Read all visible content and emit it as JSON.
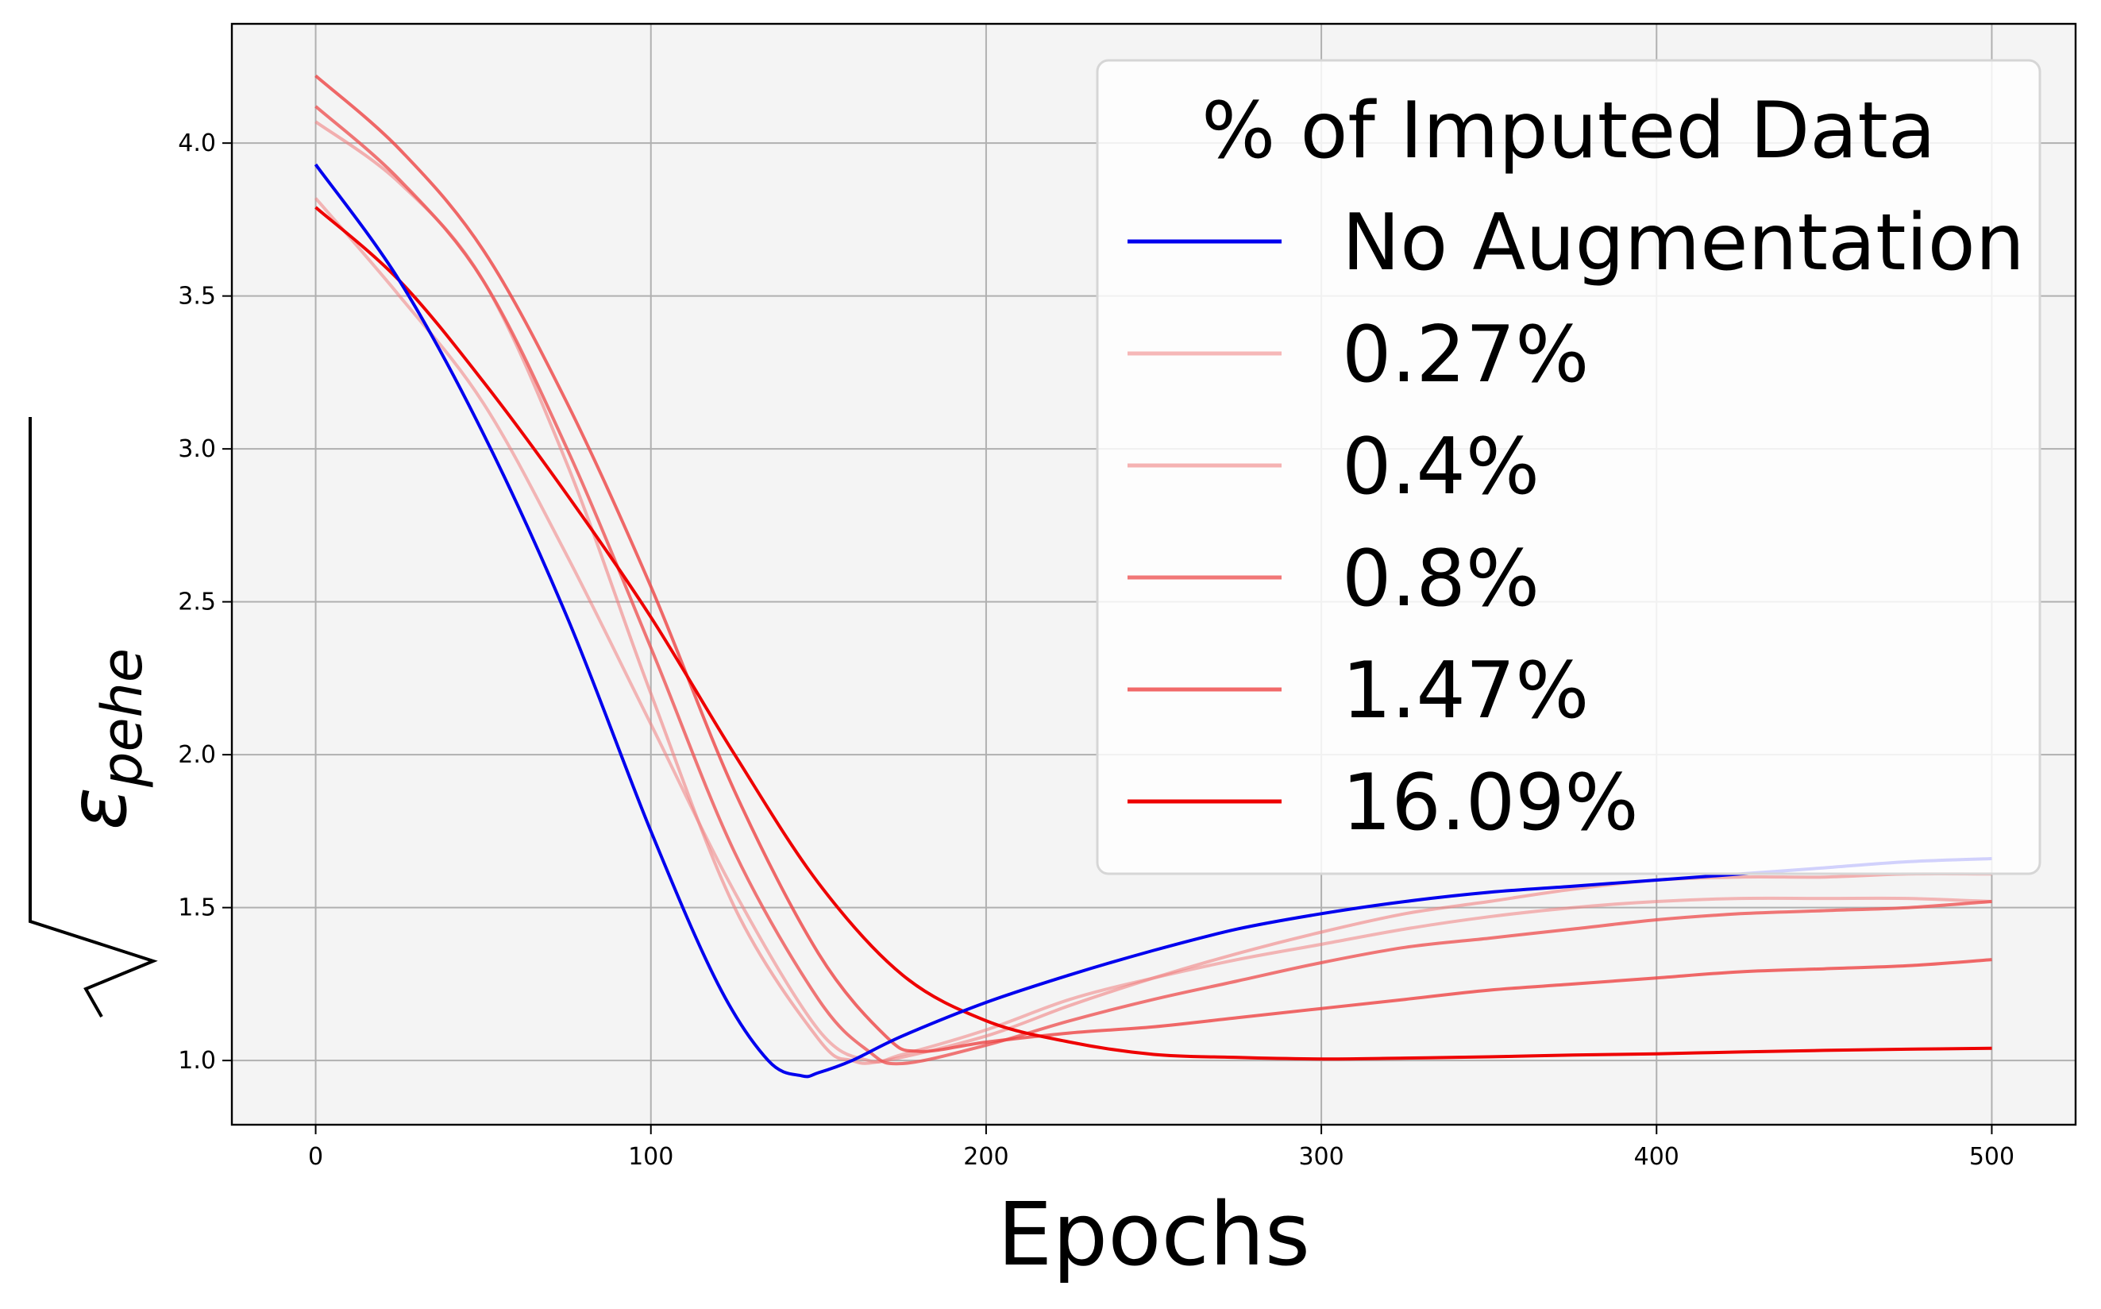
{
  "chart_data": {
    "type": "line",
    "title": "",
    "xlabel": "Epochs",
    "ylabel": "ε",
    "ylabel_subscript": "pehe",
    "xlim": [
      -25,
      525
    ],
    "ylim": [
      0.79,
      4.39
    ],
    "xticks": [
      0,
      100,
      200,
      300,
      400,
      500
    ],
    "yticks": [
      1.0,
      1.5,
      2.0,
      2.5,
      3.0,
      3.5,
      4.0
    ],
    "xtick_labels": [
      "0",
      "100",
      "200",
      "300",
      "400",
      "500"
    ],
    "ytick_labels": [
      "1.0",
      "1.5",
      "2.0",
      "2.5",
      "3.0",
      "3.5",
      "4.0"
    ],
    "grid": true,
    "background": "#f4f4f4",
    "legend": {
      "title": "% of Imputed Data",
      "placement": "top-right"
    },
    "series": [
      {
        "name": "No Augmentation",
        "color": "#0000ee",
        "opacity": 1.0,
        "x": [
          0,
          25,
          50,
          75,
          100,
          120,
          135,
          145,
          150,
          160,
          175,
          200,
          225,
          250,
          275,
          300,
          325,
          350,
          375,
          400,
          425,
          450,
          475,
          500
        ],
        "y": [
          3.93,
          3.55,
          3.05,
          2.45,
          1.75,
          1.25,
          1.0,
          0.95,
          0.96,
          1.0,
          1.08,
          1.19,
          1.28,
          1.36,
          1.43,
          1.48,
          1.52,
          1.55,
          1.57,
          1.59,
          1.61,
          1.63,
          1.65,
          1.66
        ]
      },
      {
        "name": "0.27%",
        "color": "#f08080",
        "opacity": 0.55,
        "x": [
          0,
          25,
          50,
          75,
          100,
          125,
          150,
          165,
          175,
          200,
          225,
          250,
          275,
          300,
          325,
          350,
          375,
          400,
          425,
          450,
          475,
          500
        ],
        "y": [
          3.82,
          3.5,
          3.15,
          2.65,
          2.1,
          1.55,
          1.1,
          1.0,
          1.02,
          1.1,
          1.2,
          1.27,
          1.33,
          1.38,
          1.43,
          1.47,
          1.5,
          1.52,
          1.53,
          1.53,
          1.53,
          1.52
        ]
      },
      {
        "name": "0.4%",
        "color": "#f08080",
        "opacity": 0.6,
        "x": [
          0,
          25,
          50,
          75,
          100,
          125,
          150,
          160,
          170,
          200,
          225,
          250,
          275,
          300,
          325,
          350,
          375,
          400,
          425,
          450,
          475,
          500
        ],
        "y": [
          4.07,
          3.87,
          3.55,
          2.95,
          2.2,
          1.5,
          1.07,
          1.0,
          1.0,
          1.08,
          1.18,
          1.27,
          1.35,
          1.42,
          1.48,
          1.52,
          1.56,
          1.59,
          1.6,
          1.6,
          1.61,
          1.61
        ]
      },
      {
        "name": "0.8%",
        "color": "#ee5555",
        "opacity": 0.8,
        "x": [
          0,
          25,
          50,
          75,
          100,
          125,
          150,
          165,
          175,
          200,
          225,
          250,
          275,
          300,
          325,
          350,
          375,
          400,
          425,
          450,
          475,
          500
        ],
        "y": [
          4.12,
          3.88,
          3.55,
          3.0,
          2.35,
          1.68,
          1.2,
          1.03,
          0.99,
          1.05,
          1.13,
          1.2,
          1.26,
          1.32,
          1.37,
          1.4,
          1.43,
          1.46,
          1.48,
          1.49,
          1.5,
          1.52
        ]
      },
      {
        "name": "1.47%",
        "color": "#ee4444",
        "opacity": 0.8,
        "x": [
          0,
          25,
          50,
          75,
          100,
          125,
          150,
          170,
          180,
          200,
          225,
          250,
          275,
          300,
          325,
          350,
          375,
          400,
          425,
          450,
          475,
          500
        ],
        "y": [
          4.22,
          3.98,
          3.65,
          3.15,
          2.55,
          1.88,
          1.35,
          1.08,
          1.03,
          1.06,
          1.09,
          1.11,
          1.14,
          1.17,
          1.2,
          1.23,
          1.25,
          1.27,
          1.29,
          1.3,
          1.31,
          1.33
        ]
      },
      {
        "name": "16.09%",
        "color": "#ee0000",
        "opacity": 1.0,
        "x": [
          0,
          25,
          50,
          75,
          100,
          125,
          150,
          175,
          200,
          225,
          250,
          275,
          300,
          325,
          350,
          375,
          400,
          425,
          450,
          475,
          500
        ],
        "y": [
          3.79,
          3.55,
          3.22,
          2.85,
          2.45,
          2.0,
          1.58,
          1.28,
          1.13,
          1.06,
          1.02,
          1.01,
          1.005,
          1.008,
          1.012,
          1.018,
          1.022,
          1.028,
          1.033,
          1.037,
          1.04
        ]
      }
    ]
  }
}
